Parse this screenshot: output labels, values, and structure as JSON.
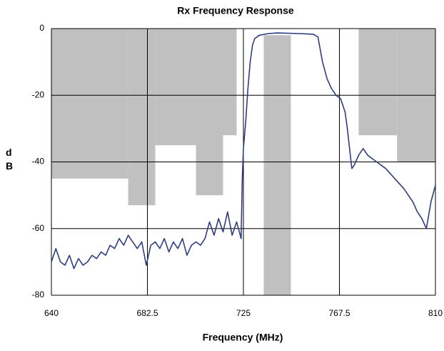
{
  "chart_data": {
    "type": "line",
    "title": "Rx Frequency Response",
    "xlabel": "Frequency (MHz)",
    "ylabel": "dB",
    "xlim": [
      640,
      810
    ],
    "ylim": [
      -80,
      0
    ],
    "xticks": [
      640,
      682.5,
      725,
      767.5,
      810
    ],
    "yticks": [
      0,
      -20,
      -40,
      -60,
      -80
    ],
    "grid": true,
    "mask_color": "#c0c0c0",
    "mask_regions": [
      {
        "x": [
          640,
          674
        ],
        "y": [
          0,
          -45
        ]
      },
      {
        "x": [
          674,
          686
        ],
        "y": [
          0,
          -53
        ]
      },
      {
        "x": [
          686,
          704
        ],
        "y": [
          0,
          -35
        ]
      },
      {
        "x": [
          704,
          716
        ],
        "y": [
          0,
          -50
        ]
      },
      {
        "x": [
          716,
          722
        ],
        "y": [
          0,
          -32
        ]
      },
      {
        "x": [
          734,
          746
        ],
        "y": [
          -2,
          -80
        ]
      },
      {
        "x": [
          776,
          793
        ],
        "y": [
          0,
          -32
        ]
      },
      {
        "x": [
          793,
          810
        ],
        "y": [
          0,
          -40
        ]
      }
    ],
    "x": [
      640,
      642,
      644,
      646,
      648,
      650,
      652,
      654,
      656,
      658,
      660,
      662,
      664,
      666,
      668,
      670,
      672,
      674,
      676,
      678,
      680,
      682,
      684,
      686,
      688,
      690,
      692,
      694,
      696,
      698,
      700,
      702,
      704,
      706,
      708,
      710,
      712,
      714,
      716,
      718,
      720,
      722,
      724,
      724.5,
      725,
      726,
      727,
      728,
      729,
      730,
      732,
      736,
      740,
      750,
      756,
      758,
      760,
      762,
      764,
      766,
      768,
      770,
      771,
      772,
      773,
      774,
      776,
      778,
      780,
      784,
      788,
      792,
      796,
      800,
      802,
      804,
      806,
      807,
      808,
      810
    ],
    "series": [
      {
        "color": "#2e3d82",
        "values": [
          -70,
          -66,
          -70,
          -71,
          -68,
          -72,
          -69,
          -71,
          -70,
          -68,
          -69,
          -67,
          -68,
          -65,
          -66,
          -63,
          -65,
          -62,
          -64,
          -66,
          -64,
          -71,
          -65,
          -64,
          -66,
          -63,
          -67,
          -64,
          -66,
          -63,
          -68,
          -65,
          -64,
          -65,
          -63,
          -58,
          -62,
          -57,
          -61,
          -55,
          -62,
          -58,
          -63,
          -45,
          -36,
          -28,
          -18,
          -10,
          -5,
          -3,
          -2,
          -1.5,
          -1.3,
          -1.5,
          -1.7,
          -2.5,
          -10,
          -15,
          -18,
          -20,
          -21,
          -25,
          -30,
          -36,
          -42,
          -41,
          -38,
          -36,
          -38,
          -40,
          -42,
          -45,
          -48,
          -52,
          -55,
          -57,
          -60,
          -56,
          -52,
          -47
        ]
      }
    ]
  }
}
